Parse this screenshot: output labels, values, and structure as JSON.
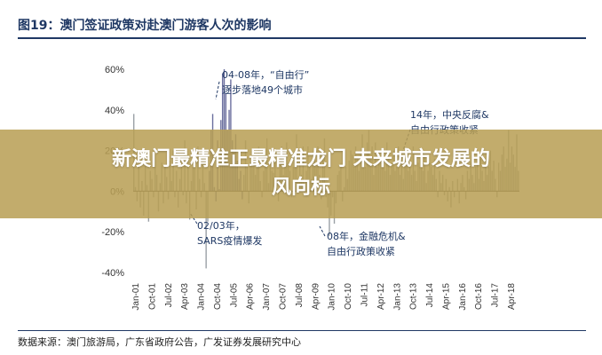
{
  "figure": {
    "title": "图19：澳门签证政策对赴澳门游客人次的影响",
    "source": "数据来源：澳门旅游局，广东省政府公告，广发证券发展研究中心"
  },
  "banner": {
    "line1": "新澳门最精准正最精准龙门 未来城市发展的",
    "line2": "风向标"
  },
  "chart_data": {
    "type": "bar",
    "title": "澳门签证政策对赴澳门游客人次的影响",
    "xlabel": "",
    "ylabel": "",
    "ylim": [
      -40,
      60
    ],
    "y_ticks": [
      "60%",
      "40%",
      "20%",
      "0%",
      "-20%",
      "-40%"
    ],
    "y_tick_values": [
      60,
      40,
      20,
      0,
      -20,
      -40
    ],
    "x_tick_labels": [
      "Jan-01",
      "Oct-01",
      "Jul-02",
      "Apr-03",
      "Jan-04",
      "Oct-04",
      "Jul-05",
      "Apr-06",
      "Jan-07",
      "Oct-07",
      "Jul-08",
      "Apr-09",
      "Jan-10",
      "Oct-10",
      "Jul-11",
      "Apr-12",
      "Jan-13",
      "Oct-13",
      "Jul-14",
      "Apr-15",
      "Jan-16",
      "Oct-16",
      "Jul-17",
      "Apr-18"
    ],
    "bar_color": "#9aa0a6",
    "highlight_color": "#6b6f9e",
    "annotation_color": "#1f3864",
    "annotations": [
      {
        "lines": [
          "04-08年，“自由行”",
          "逐步落地49个城市"
        ]
      },
      {
        "lines": [
          "14年，中央反腐&",
          "自由行政策收紧"
        ]
      },
      {
        "lines": [
          "02/03年，",
          "SARS疫情爆发"
        ]
      },
      {
        "lines": [
          "08年，金融危机&",
          "自由行政策收紧"
        ]
      }
    ],
    "series": [
      {
        "values": [
          38,
          2,
          -5,
          12,
          -8,
          5,
          -12,
          15,
          3,
          -15,
          10,
          6,
          -3,
          18,
          8,
          -10,
          4,
          14,
          -6,
          12,
          7,
          -4,
          15,
          5,
          20,
          -3,
          10,
          -8,
          6,
          13,
          -2,
          25,
          -6,
          18,
          -14,
          5,
          12,
          16,
          -9,
          22,
          6,
          -3,
          14,
          4,
          -38,
          -15,
          10,
          30,
          38,
          2,
          -5,
          25,
          1,
          35,
          58,
          60,
          48,
          30,
          40,
          55,
          25,
          20,
          28,
          15,
          6,
          10,
          -4,
          8,
          25,
          12,
          -6,
          14,
          20,
          16,
          8,
          12,
          22,
          5,
          -3,
          10,
          18,
          26,
          4,
          14,
          10,
          9,
          15,
          6,
          -5,
          18,
          22,
          8,
          12,
          24,
          14,
          10,
          -3,
          12,
          20,
          28,
          6,
          16,
          8,
          22,
          -2,
          10,
          22,
          12,
          6,
          18,
          20,
          12,
          22,
          8,
          -4,
          16,
          26,
          -3,
          -8,
          -22,
          -12,
          -3,
          -16,
          -6,
          8,
          10,
          14,
          -5,
          2,
          12,
          6,
          15,
          20,
          18,
          12,
          22,
          16,
          10,
          18,
          28,
          14,
          12,
          24,
          30,
          16,
          22,
          8,
          24,
          12,
          14,
          16,
          20,
          12,
          10,
          24,
          18,
          8,
          14,
          20,
          10,
          12,
          22,
          8,
          18,
          6,
          12,
          20,
          10,
          14,
          8,
          22,
          10,
          5,
          14,
          12,
          16,
          10,
          18,
          4,
          10,
          14,
          12,
          8,
          16,
          6,
          -3,
          10,
          4,
          8,
          -2,
          6,
          -5,
          2,
          -8,
          5,
          -3,
          0,
          6,
          -6,
          4,
          8,
          2,
          -4,
          10,
          6,
          14,
          8,
          4,
          12,
          18,
          6,
          16,
          10,
          5,
          14,
          8,
          12,
          20,
          10,
          15,
          6,
          -3,
          14,
          10,
          18,
          22,
          12,
          16,
          30,
          14,
          22,
          18,
          12,
          28,
          10
        ],
        "highlight_range": [
          46,
          66
        ]
      }
    ]
  }
}
